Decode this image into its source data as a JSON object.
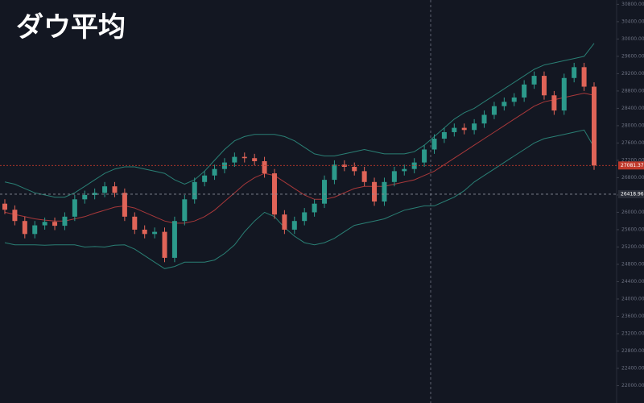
{
  "chart_data": {
    "type": "candlestick",
    "title": "ダウ平均",
    "open": [
      26200,
      26060,
      25800,
      25500,
      25700,
      25780,
      25690,
      25900,
      26300,
      26400,
      26450,
      26600,
      26450,
      25900,
      25600,
      25500,
      25550,
      24950,
      25800,
      26300,
      26700,
      26850,
      27000,
      27150,
      27280,
      27250,
      27180,
      26900,
      25950,
      25600,
      25800,
      26000,
      26200,
      26750,
      27100,
      27050,
      26950,
      26700,
      26250,
      26700,
      26950,
      27000,
      27150,
      27450,
      27700,
      27850,
      27950,
      27900,
      28050,
      28250,
      28450,
      28550,
      28650,
      28950,
      29150,
      28700,
      28350,
      29100,
      29350,
      28900
    ],
    "high": [
      26300,
      26160,
      25900,
      25800,
      25880,
      25880,
      26000,
      26400,
      26500,
      26550,
      26700,
      26700,
      26550,
      26000,
      25700,
      25650,
      25650,
      25900,
      26400,
      26800,
      26950,
      27100,
      27250,
      27380,
      27380,
      27350,
      27280,
      27000,
      26050,
      25900,
      26100,
      26300,
      26850,
      27200,
      27200,
      27150,
      27050,
      26800,
      26800,
      27050,
      27100,
      27250,
      27550,
      27800,
      27950,
      28050,
      28050,
      28150,
      28350,
      28550,
      28650,
      28750,
      29050,
      29250,
      29250,
      28800,
      29200,
      29450,
      29450,
      29000
    ],
    "low": [
      25960,
      25700,
      25400,
      25400,
      25600,
      25590,
      25590,
      25800,
      26200,
      26300,
      26350,
      26350,
      25800,
      25500,
      25400,
      25400,
      24850,
      24850,
      25700,
      26200,
      26600,
      26750,
      26900,
      27050,
      27150,
      27080,
      26800,
      25850,
      25500,
      25500,
      25700,
      25900,
      26100,
      26650,
      26950,
      26850,
      26600,
      26150,
      26150,
      26600,
      26850,
      26900,
      27050,
      27350,
      27600,
      27750,
      27800,
      27800,
      27950,
      28150,
      28350,
      28450,
      28550,
      28850,
      28600,
      28250,
      28250,
      29000,
      28800,
      26980
    ],
    "close": [
      26060,
      25800,
      25500,
      25700,
      25780,
      25690,
      25900,
      26300,
      26400,
      26450,
      26600,
      26450,
      25900,
      25600,
      25500,
      25550,
      24950,
      25800,
      26300,
      26700,
      26850,
      27000,
      27150,
      27280,
      27250,
      27180,
      26900,
      25950,
      25600,
      25800,
      26000,
      26200,
      26750,
      27100,
      27050,
      26950,
      26700,
      26250,
      26700,
      26950,
      27000,
      27150,
      27450,
      27700,
      27850,
      27950,
      27900,
      28050,
      28250,
      28450,
      28550,
      28650,
      28950,
      29150,
      28700,
      28350,
      29100,
      29350,
      28900,
      27081.37
    ],
    "up_color": "#2c9a8b",
    "down_color": "#e06458",
    "bands": {
      "upper_color": "#2a7f74",
      "middle_color": "#a8383a",
      "lower_color": "#2a7f74",
      "upper": [
        26700,
        26650,
        26550,
        26450,
        26400,
        26350,
        26350,
        26450,
        26600,
        26750,
        26900,
        27000,
        27050,
        27050,
        27000,
        26950,
        26900,
        26750,
        26650,
        26750,
        26950,
        27200,
        27450,
        27650,
        27750,
        27800,
        27800,
        27800,
        27750,
        27650,
        27500,
        27350,
        27300,
        27300,
        27350,
        27400,
        27450,
        27400,
        27350,
        27350,
        27350,
        27400,
        27550,
        27750,
        27950,
        28150,
        28300,
        28400,
        28550,
        28700,
        28850,
        29000,
        29150,
        29300,
        29400,
        29450,
        29500,
        29550,
        29600,
        29900
      ],
      "middle": [
        26000,
        25950,
        25900,
        25850,
        25820,
        25800,
        25800,
        25850,
        25900,
        25980,
        26050,
        26120,
        26150,
        26100,
        26000,
        25900,
        25800,
        25750,
        25750,
        25800,
        25900,
        26050,
        26250,
        26450,
        26650,
        26800,
        26900,
        26850,
        26700,
        26550,
        26400,
        26300,
        26300,
        26350,
        26450,
        26550,
        26600,
        26600,
        26600,
        26650,
        26700,
        26750,
        26850,
        26950,
        27100,
        27250,
        27400,
        27550,
        27700,
        27850,
        28000,
        28150,
        28300,
        28450,
        28550,
        28600,
        28650,
        28700,
        28750,
        28700
      ],
      "lower": [
        25300,
        25250,
        25250,
        25250,
        25240,
        25250,
        25250,
        25250,
        25200,
        25210,
        25200,
        25240,
        25250,
        25150,
        25000,
        24850,
        24700,
        24750,
        24850,
        24850,
        24850,
        24900,
        25050,
        25250,
        25550,
        25800,
        26000,
        25900,
        25650,
        25450,
        25300,
        25250,
        25300,
        25400,
        25550,
        25700,
        25750,
        25800,
        25850,
        25950,
        26050,
        26100,
        26150,
        26150,
        26250,
        26350,
        26500,
        26700,
        26850,
        27000,
        27150,
        27300,
        27450,
        27600,
        27700,
        27750,
        27800,
        27850,
        27900,
        27500
      ]
    },
    "last_price": 27081.37,
    "last_price_color": "#c0392b",
    "crosshair_price": 26418.96,
    "ylim": [
      21600,
      30900
    ],
    "yticks": [
      {
        "value": 22000,
        "label": "22000.00"
      },
      {
        "value": 22400,
        "label": "22400.00"
      },
      {
        "value": 22800,
        "label": "22800.00"
      },
      {
        "value": 23200,
        "label": "23200.00"
      },
      {
        "value": 23600,
        "label": "23600.00"
      },
      {
        "value": 24000,
        "label": "24000.00"
      },
      {
        "value": 24400,
        "label": "24400.00"
      },
      {
        "value": 24800,
        "label": "24800.00"
      },
      {
        "value": 25200,
        "label": "25200.00"
      },
      {
        "value": 25600,
        "label": "25600.00"
      },
      {
        "value": 26000,
        "label": "26000.00"
      },
      {
        "value": 26400,
        "label": "26400.00"
      },
      {
        "value": 26800,
        "label": "26800.00"
      },
      {
        "value": 27200,
        "label": "27200.00"
      },
      {
        "value": 27600,
        "label": "27600.00"
      },
      {
        "value": 28000,
        "label": "28000.00"
      },
      {
        "value": 28400,
        "label": "28400.00"
      },
      {
        "value": 28800,
        "label": "28800.00"
      },
      {
        "value": 29200,
        "label": "29200.00"
      },
      {
        "value": 29600,
        "label": "29600.00"
      },
      {
        "value": 30000,
        "label": "30000.00"
      },
      {
        "value": 30400,
        "label": "30400.00"
      },
      {
        "value": 30800,
        "label": "30800.00"
      }
    ]
  }
}
